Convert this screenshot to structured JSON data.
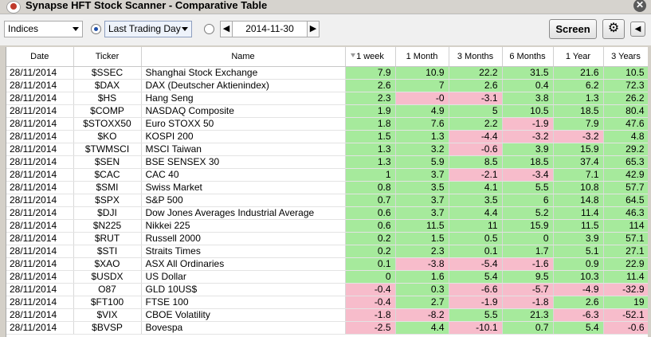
{
  "window": {
    "title": "Synapse HFT Stock Scanner - Comparative Table",
    "close_glyph": "✕"
  },
  "toolbar": {
    "category": "Indices",
    "mode": "Last Trading Day",
    "date": "2014-11-30",
    "prev_glyph": "◀",
    "next_glyph": "▶",
    "screen_label": "Screen",
    "gear_glyph": "⚙",
    "back_glyph": "◀"
  },
  "table": {
    "columns": [
      "Date",
      "Ticker",
      "Name",
      "1 week",
      "1 Month",
      "3 Months",
      "6 Months",
      "1 Year",
      "3 Years"
    ],
    "rows": [
      {
        "date": "28/11/2014",
        "ticker": "$SSEC",
        "name": "Shanghai Stock Exchange",
        "v": [
          "7.9",
          "10.9",
          "22.2",
          "31.5",
          "21.6",
          "10.5"
        ]
      },
      {
        "date": "28/11/2014",
        "ticker": "$DAX",
        "name": "DAX (Deutscher Aktienindex)",
        "v": [
          "2.6",
          "7",
          "2.6",
          "0.4",
          "6.2",
          "72.3"
        ]
      },
      {
        "date": "28/11/2014",
        "ticker": "$HS",
        "name": "Hang Seng",
        "v": [
          "2.3",
          "-0",
          "-3.1",
          "3.8",
          "1.3",
          "26.2"
        ]
      },
      {
        "date": "28/11/2014",
        "ticker": "$COMP",
        "name": "NASDAQ Composite",
        "v": [
          "1.9",
          "4.9",
          "5",
          "10.5",
          "18.5",
          "80.4"
        ]
      },
      {
        "date": "28/11/2014",
        "ticker": "$STOXX50",
        "name": "Euro STOXX 50",
        "v": [
          "1.8",
          "7.6",
          "2.2",
          "-1.9",
          "7.9",
          "47.6"
        ]
      },
      {
        "date": "28/11/2014",
        "ticker": "$KO",
        "name": "KOSPI 200",
        "v": [
          "1.5",
          "1.3",
          "-4.4",
          "-3.2",
          "-3.2",
          "4.8"
        ]
      },
      {
        "date": "28/11/2014",
        "ticker": "$TWMSCI",
        "name": "MSCI Taiwan",
        "v": [
          "1.3",
          "3.2",
          "-0.6",
          "3.9",
          "15.9",
          "29.2"
        ]
      },
      {
        "date": "28/11/2014",
        "ticker": "$SEN",
        "name": "BSE SENSEX 30",
        "v": [
          "1.3",
          "5.9",
          "8.5",
          "18.5",
          "37.4",
          "65.3"
        ]
      },
      {
        "date": "28/11/2014",
        "ticker": "$CAC",
        "name": "CAC 40",
        "v": [
          "1",
          "3.7",
          "-2.1",
          "-3.4",
          "7.1",
          "42.9"
        ]
      },
      {
        "date": "28/11/2014",
        "ticker": "$SMI",
        "name": "Swiss Market",
        "v": [
          "0.8",
          "3.5",
          "4.1",
          "5.5",
          "10.8",
          "57.7"
        ]
      },
      {
        "date": "28/11/2014",
        "ticker": "$SPX",
        "name": "S&P 500",
        "v": [
          "0.7",
          "3.7",
          "3.5",
          "6",
          "14.8",
          "64.5"
        ]
      },
      {
        "date": "28/11/2014",
        "ticker": "$DJI",
        "name": "Dow Jones Averages Industrial Average",
        "v": [
          "0.6",
          "3.7",
          "4.4",
          "5.2",
          "11.4",
          "46.3"
        ]
      },
      {
        "date": "28/11/2014",
        "ticker": "$N225",
        "name": "Nikkei 225",
        "v": [
          "0.6",
          "11.5",
          "11",
          "15.9",
          "11.5",
          "114"
        ]
      },
      {
        "date": "28/11/2014",
        "ticker": "$RUT",
        "name": "Russell 2000",
        "v": [
          "0.2",
          "1.5",
          "0.5",
          "0",
          "3.9",
          "57.1"
        ]
      },
      {
        "date": "28/11/2014",
        "ticker": "$STI",
        "name": "Straits Times",
        "v": [
          "0.2",
          "2.3",
          "0.1",
          "1.7",
          "5.1",
          "27.1"
        ]
      },
      {
        "date": "28/11/2014",
        "ticker": "$XAO",
        "name": "ASX All Ordinaries",
        "v": [
          "0.1",
          "-3.8",
          "-5.4",
          "-1.6",
          "0.9",
          "22.9"
        ]
      },
      {
        "date": "28/11/2014",
        "ticker": "$USDX",
        "name": "US Dollar",
        "v": [
          "0",
          "1.6",
          "5.4",
          "9.5",
          "10.3",
          "11.4"
        ]
      },
      {
        "date": "28/11/2014",
        "ticker": "O87",
        "name": "GLD 10US$",
        "v": [
          "-0.4",
          "0.3",
          "-6.6",
          "-5.7",
          "-4.9",
          "-32.9"
        ]
      },
      {
        "date": "28/11/2014",
        "ticker": "$FT100",
        "name": "FTSE 100",
        "v": [
          "-0.4",
          "2.7",
          "-1.9",
          "-1.8",
          "2.6",
          "19"
        ]
      },
      {
        "date": "28/11/2014",
        "ticker": "$VIX",
        "name": "CBOE Volatility",
        "v": [
          "-1.8",
          "-8.2",
          "5.5",
          "21.3",
          "-6.3",
          "-52.1"
        ]
      },
      {
        "date": "28/11/2014",
        "ticker": "$BVSP",
        "name": "Bovespa",
        "v": [
          "-2.5",
          "4.4",
          "-10.1",
          "0.7",
          "5.4",
          "-0.6"
        ]
      }
    ]
  },
  "colors": {
    "positive": "#a6ea9c",
    "negative": "#f7bccb"
  }
}
